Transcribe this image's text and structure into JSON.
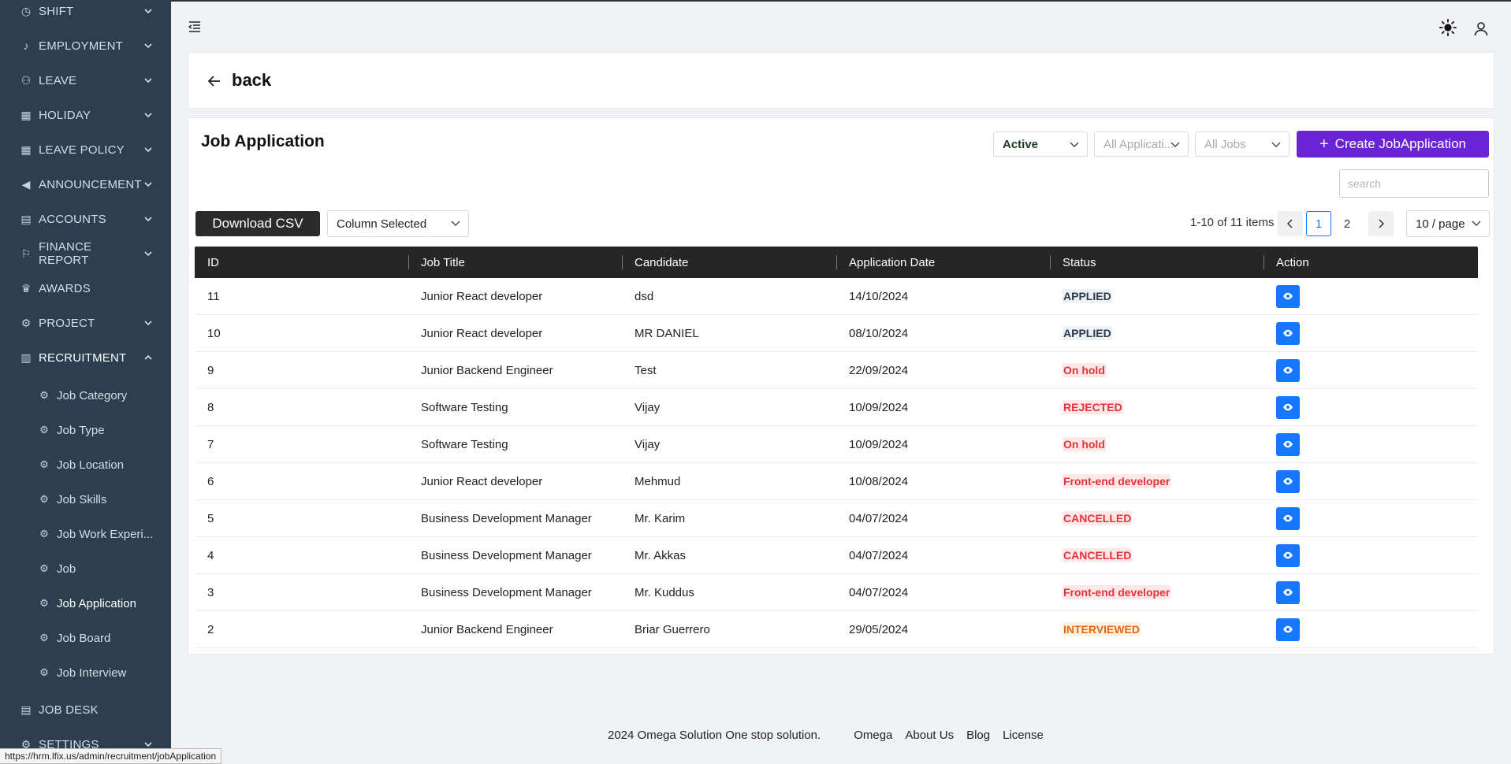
{
  "sidebar": {
    "items": [
      {
        "label": "SHIFT",
        "icon": "clock-icon",
        "glyph": "◷",
        "chevron": "down"
      },
      {
        "label": "EMPLOYMENT",
        "icon": "bell-icon",
        "glyph": "♪",
        "chevron": "down"
      },
      {
        "label": "LEAVE",
        "icon": "users-icon",
        "glyph": "⚇",
        "chevron": "down"
      },
      {
        "label": "HOLIDAY",
        "icon": "calendar-icon",
        "glyph": "▦",
        "chevron": "down"
      },
      {
        "label": "LEAVE POLICY",
        "icon": "calendar-icon",
        "glyph": "▦",
        "chevron": "down"
      },
      {
        "label": "ANNOUNCEMENT",
        "icon": "megaphone-icon",
        "glyph": "◀",
        "chevron": "down"
      },
      {
        "label": "ACCOUNTS",
        "icon": "ledger-icon",
        "glyph": "▤",
        "chevron": "down"
      },
      {
        "label": "FINANCE REPORT",
        "icon": "flag-icon",
        "glyph": "⚐",
        "chevron": "down"
      },
      {
        "label": "AWARDS",
        "icon": "trophy-icon",
        "glyph": "♛",
        "chevron": ""
      },
      {
        "label": "PROJECT",
        "icon": "gear-icon",
        "glyph": "⚙",
        "chevron": "down"
      },
      {
        "label": "RECRUITMENT",
        "icon": "building-icon",
        "glyph": "▥",
        "chevron": "up"
      }
    ],
    "sub_items": [
      {
        "label": "Job Category"
      },
      {
        "label": "Job Type"
      },
      {
        "label": "Job Location"
      },
      {
        "label": "Job Skills"
      },
      {
        "label": "Job Work Experi..."
      },
      {
        "label": "Job"
      },
      {
        "label": "Job Application"
      },
      {
        "label": "Job Board"
      },
      {
        "label": "Job Interview"
      }
    ],
    "bottom_items": [
      {
        "label": "JOB DESK",
        "icon": "desk-icon",
        "glyph": "▤",
        "chevron": ""
      },
      {
        "label": "SETTINGS",
        "icon": "gear-icon",
        "glyph": "⚙",
        "chevron": "down"
      }
    ]
  },
  "header": {
    "back_label": "back"
  },
  "main": {
    "title": "Job Application",
    "filters": {
      "status": "Active",
      "applications_placeholder": "All Applicati...",
      "jobs_placeholder": "All Jobs"
    },
    "create_label": "Create JobApplication",
    "search_placeholder": "search",
    "download_label": "Download CSV",
    "column_select_label": "Column Selected",
    "pagination": {
      "info": "1-10 of 11 items",
      "prev": "<",
      "pages": [
        "1",
        "2"
      ],
      "next": ">",
      "page_size": "10 / page"
    },
    "table": {
      "columns": [
        "ID",
        "Job Title",
        "Candidate",
        "Application Date",
        "Status",
        "Action"
      ],
      "rows": [
        {
          "id": "11",
          "job": "Junior React developer",
          "candidate": "dsd",
          "date": "14/10/2024",
          "status": "APPLIED",
          "tone": "applied"
        },
        {
          "id": "10",
          "job": "Junior React developer",
          "candidate": "MR DANIEL",
          "date": "08/10/2024",
          "status": "APPLIED",
          "tone": "applied"
        },
        {
          "id": "9",
          "job": "Junior Backend Engineer",
          "candidate": "Test",
          "date": "22/09/2024",
          "status": "On hold",
          "tone": "red"
        },
        {
          "id": "8",
          "job": "Software Testing",
          "candidate": "Vijay",
          "date": "10/09/2024",
          "status": "REJECTED",
          "tone": "red"
        },
        {
          "id": "7",
          "job": "Software Testing",
          "candidate": "Vijay",
          "date": "10/09/2024",
          "status": "On hold",
          "tone": "red"
        },
        {
          "id": "6",
          "job": "Junior React developer",
          "candidate": "Mehmud",
          "date": "10/08/2024",
          "status": "Front-end developer",
          "tone": "red"
        },
        {
          "id": "5",
          "job": "Business Development Manager",
          "candidate": "Mr. Karim",
          "date": "04/07/2024",
          "status": "CANCELLED",
          "tone": "red"
        },
        {
          "id": "4",
          "job": "Business Development Manager",
          "candidate": "Mr. Akkas",
          "date": "04/07/2024",
          "status": "CANCELLED",
          "tone": "red"
        },
        {
          "id": "3",
          "job": "Business Development Manager",
          "candidate": "Mr. Kuddus",
          "date": "04/07/2024",
          "status": "Front-end developer",
          "tone": "red"
        },
        {
          "id": "2",
          "job": "Junior Backend Engineer",
          "candidate": "Briar Guerrero",
          "date": "29/05/2024",
          "status": "INTERVIEWED",
          "tone": "orange"
        }
      ]
    }
  },
  "footer": {
    "copyright": "2024 Omega Solution One stop solution.",
    "links": [
      "Omega",
      "About Us",
      "Blog",
      "License"
    ]
  },
  "status_url": "https://hrm.lfix.us/admin/recruitment/jobApplication",
  "colors": {
    "sidebar_bg": "#2c3e50",
    "accent_purple": "#6a24d6",
    "action_blue": "#1677ff",
    "table_header": "#262626"
  }
}
